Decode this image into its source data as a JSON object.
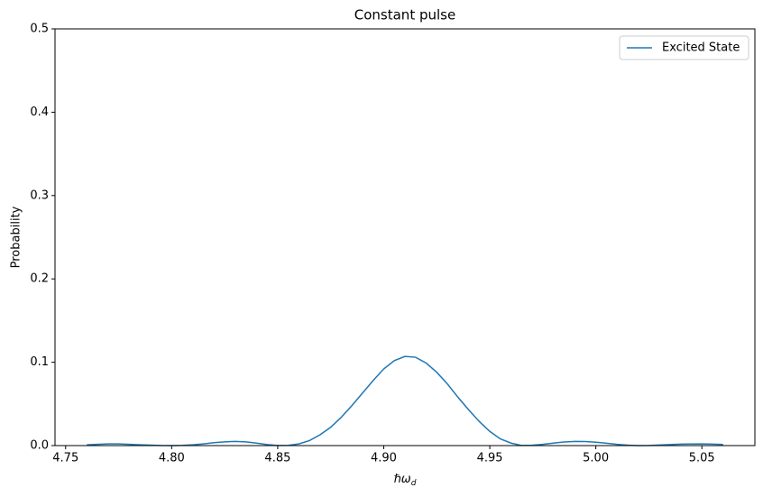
{
  "chart_data": {
    "type": "line",
    "title": "Constant pulse",
    "x_label": {
      "main": "ℏω",
      "subscript": "d"
    },
    "y_label": "Probability",
    "x": [
      4.76,
      4.765,
      4.77,
      4.775,
      4.78,
      4.785,
      4.79,
      4.795,
      4.8,
      4.805,
      4.81,
      4.815,
      4.82,
      4.825,
      4.83,
      4.835,
      4.84,
      4.845,
      4.85,
      4.855,
      4.86,
      4.865,
      4.87,
      4.875,
      4.88,
      4.885,
      4.89,
      4.895,
      4.9,
      4.905,
      4.91,
      4.915,
      4.92,
      4.925,
      4.93,
      4.935,
      4.94,
      4.945,
      4.95,
      4.955,
      4.96,
      4.965,
      4.97,
      4.975,
      4.98,
      4.985,
      4.99,
      4.995,
      5.0,
      5.005,
      5.01,
      5.015,
      5.02,
      5.025,
      5.03,
      5.035,
      5.04,
      5.045,
      5.05,
      5.055,
      5.06
    ],
    "series": [
      {
        "name": "Excited State",
        "color": "#1f77b4",
        "values": [
          0.001,
          0.0015,
          0.002,
          0.002,
          0.0015,
          0.001,
          0.0005,
          0.0001,
          0.0,
          0.0003,
          0.001,
          0.002,
          0.0035,
          0.0045,
          0.005,
          0.0045,
          0.003,
          0.0012,
          0.0001,
          0.0003,
          0.002,
          0.006,
          0.013,
          0.022,
          0.034,
          0.048,
          0.063,
          0.078,
          0.092,
          0.102,
          0.107,
          0.106,
          0.099,
          0.088,
          0.074,
          0.058,
          0.043,
          0.029,
          0.017,
          0.008,
          0.003,
          0.0002,
          0.0004,
          0.0015,
          0.003,
          0.0043,
          0.005,
          0.0048,
          0.004,
          0.0028,
          0.0015,
          0.0005,
          0.0,
          0.0002,
          0.0007,
          0.0012,
          0.0017,
          0.0019,
          0.002,
          0.0017,
          0.0013
        ]
      }
    ],
    "xlim": [
      4.745,
      5.075
    ],
    "ylim": [
      0,
      0.5
    ],
    "xticks": [
      {
        "value": 4.75,
        "label": "4.75"
      },
      {
        "value": 4.8,
        "label": "4.80"
      },
      {
        "value": 4.85,
        "label": "4.85"
      },
      {
        "value": 4.9,
        "label": "4.90"
      },
      {
        "value": 4.95,
        "label": "4.95"
      },
      {
        "value": 5.0,
        "label": "5.00"
      },
      {
        "value": 5.05,
        "label": "5.05"
      }
    ],
    "yticks": [
      {
        "value": 0,
        "label": "0.0"
      },
      0.1,
      0.2,
      0.3,
      0.4,
      0.5
    ],
    "grid": false,
    "legend": "upper right"
  }
}
